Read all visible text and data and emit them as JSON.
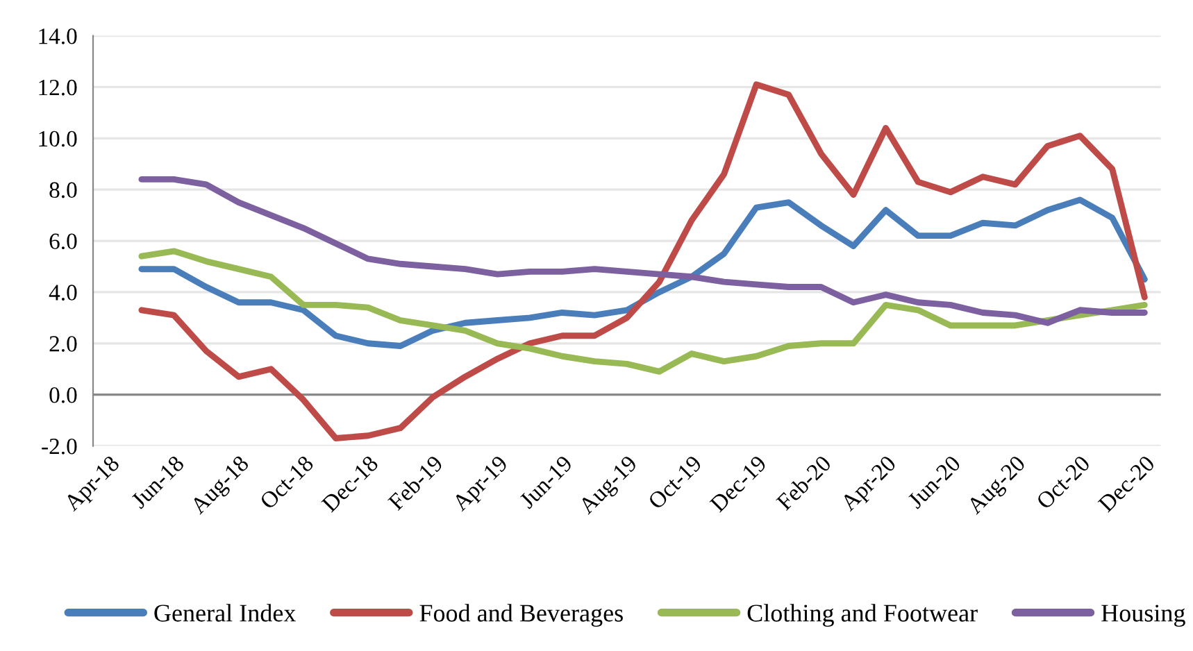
{
  "chart_data": {
    "type": "line",
    "categories": [
      "Apr-18",
      null,
      "Jun-18",
      null,
      "Aug-18",
      null,
      "Oct-18",
      null,
      "Dec-18",
      null,
      "Feb-19",
      null,
      "Apr-19",
      null,
      "Jun-19",
      null,
      "Aug-19",
      null,
      "Oct-19",
      null,
      "Dec-19",
      null,
      "Feb-20",
      null,
      "Apr-20",
      null,
      "Jun-20",
      null,
      "Aug-20",
      null,
      "Oct-20",
      null,
      "Dec-20"
    ],
    "series": [
      {
        "name": "General Index",
        "color": "#4a7ebb",
        "values": [
          null,
          4.9,
          4.9,
          4.2,
          3.6,
          3.6,
          3.3,
          2.3,
          2.0,
          1.9,
          2.5,
          2.8,
          2.9,
          3.0,
          3.2,
          3.1,
          3.3,
          4.0,
          4.6,
          5.5,
          7.3,
          7.5,
          6.6,
          5.8,
          7.2,
          6.2,
          6.2,
          6.7,
          6.6,
          7.2,
          7.6,
          6.9,
          4.5
        ]
      },
      {
        "name": "Food and Beverages",
        "color": "#be4b48",
        "values": [
          null,
          3.3,
          3.1,
          1.7,
          0.7,
          1.0,
          -0.2,
          -1.7,
          -1.6,
          -1.3,
          -0.1,
          0.7,
          1.4,
          2.0,
          2.3,
          2.3,
          3.0,
          4.4,
          6.8,
          8.6,
          12.1,
          11.7,
          9.4,
          7.8,
          10.4,
          8.3,
          7.9,
          8.5,
          8.2,
          9.7,
          10.1,
          8.8,
          3.8
        ]
      },
      {
        "name": "Clothing and Footwear",
        "color": "#98b954",
        "values": [
          null,
          5.4,
          5.6,
          5.2,
          4.9,
          4.6,
          3.5,
          3.5,
          3.4,
          2.9,
          2.7,
          2.5,
          2.0,
          1.8,
          1.5,
          1.3,
          1.2,
          0.9,
          1.6,
          1.3,
          1.5,
          1.9,
          2.0,
          2.0,
          3.5,
          3.3,
          2.7,
          2.7,
          2.7,
          2.9,
          3.1,
          3.3,
          3.5
        ]
      },
      {
        "name": "Housing",
        "color": "#7d60a0",
        "values": [
          null,
          8.4,
          8.4,
          8.2,
          7.5,
          7.0,
          6.5,
          5.9,
          5.3,
          5.1,
          5.0,
          4.9,
          4.7,
          4.8,
          4.8,
          4.9,
          4.8,
          4.7,
          4.6,
          4.4,
          4.3,
          4.2,
          4.2,
          3.6,
          3.9,
          3.6,
          3.5,
          3.2,
          3.1,
          2.8,
          3.3,
          3.2,
          3.2
        ]
      }
    ],
    "ylim": [
      -2,
      14
    ],
    "yticks": [
      {
        "value": -2,
        "label": "-2.0"
      },
      {
        "value": 0,
        "label": "0.0"
      },
      {
        "value": 2,
        "label": "2.0"
      },
      {
        "value": 4,
        "label": "4.0"
      },
      {
        "value": 6,
        "label": "6.0"
      },
      {
        "value": 8,
        "label": "8.0"
      },
      {
        "value": 10,
        "label": "10.0"
      },
      {
        "value": 12,
        "label": "12.0"
      },
      {
        "value": 14,
        "label": "14.0"
      }
    ],
    "grid": "y",
    "legend": "bottom",
    "marker": "none",
    "line_style": "solid"
  }
}
